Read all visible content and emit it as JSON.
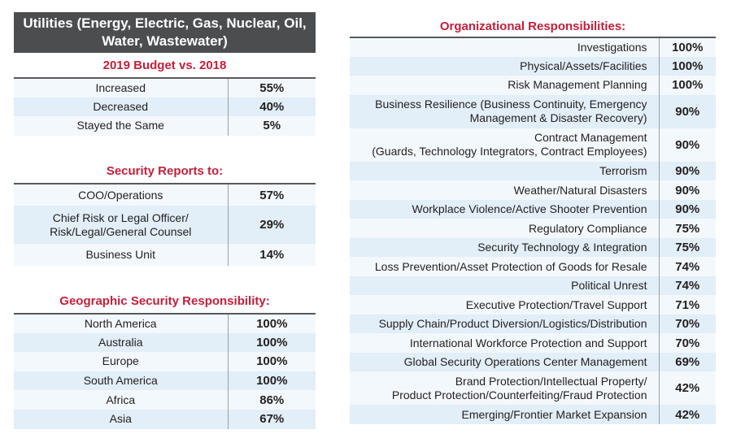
{
  "header": {
    "title": "Utilities (Energy, Electric, Gas, Nuclear, Oil, Water, Wastewater)"
  },
  "budget": {
    "title": "2019 Budget vs. 2018",
    "rows": [
      [
        "Increased",
        "55%"
      ],
      [
        "Decreased",
        "40%"
      ],
      [
        "Stayed the Same",
        "5%"
      ]
    ]
  },
  "reports": {
    "title": "Security Reports to:",
    "rows": [
      [
        "COO/Operations",
        "57%"
      ],
      [
        "Chief Risk or Legal Officer/\nRisk/Legal/General Counsel",
        "29%"
      ],
      [
        "Business Unit",
        "14%"
      ]
    ]
  },
  "geo": {
    "title": "Geographic Security Responsibility:",
    "rows": [
      [
        "North America",
        "100%"
      ],
      [
        "Australia",
        "100%"
      ],
      [
        "Europe",
        "100%"
      ],
      [
        "South America",
        "100%"
      ],
      [
        "Africa",
        "86%"
      ],
      [
        "Asia",
        "67%"
      ]
    ]
  },
  "org": {
    "title": "Organizational Responsibilities:",
    "rows": [
      [
        "Investigations",
        "100%"
      ],
      [
        "Physical/Assets/Facilities",
        "100%"
      ],
      [
        "Risk Management Planning",
        "100%"
      ],
      [
        "Business Resilience (Business Continuity, Emergency\nManagement & Disaster Recovery)",
        "90%"
      ],
      [
        "Contract Management\n(Guards, Technology Integrators, Contract Employees)",
        "90%"
      ],
      [
        "Terrorism",
        "90%"
      ],
      [
        "Weather/Natural Disasters",
        "90%"
      ],
      [
        "Workplace Violence/Active Shooter Prevention",
        "90%"
      ],
      [
        "Regulatory Compliance",
        "75%"
      ],
      [
        "Security Technology & Integration",
        "75%"
      ],
      [
        "Loss Prevention/Asset Protection of Goods for Resale",
        "74%"
      ],
      [
        "Political Unrest",
        "74%"
      ],
      [
        "Executive Protection/Travel Support",
        "71%"
      ],
      [
        "Supply Chain/Product Diversion/Logistics/Distribution",
        "70%"
      ],
      [
        "International Workforce Protection and Support",
        "70%"
      ],
      [
        "Global Security Operations Center Management",
        "69%"
      ],
      [
        "Brand Protection/Intellectual Property/\nProduct Protection/Counterfeiting/Fraud Protection",
        "42%"
      ],
      [
        "Emerging/Frontier Market Expansion",
        "42%"
      ]
    ]
  },
  "colors": {
    "header": "#4b4d4f",
    "accent": "#c1203b",
    "row_light": "#f3f8fc",
    "row_dark": "#e2eef8"
  }
}
